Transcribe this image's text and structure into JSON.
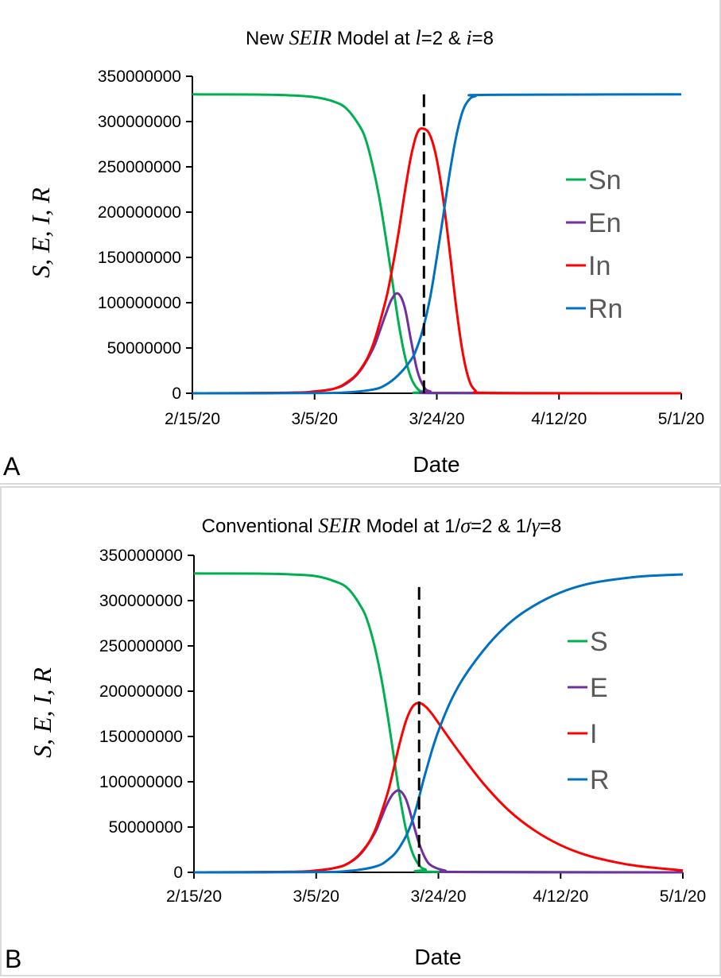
{
  "panels": [
    {
      "letter": "A",
      "title_parts": [
        "New ",
        "SEIR",
        " Model at ",
        "l",
        "=2 & ",
        "i",
        "=8"
      ],
      "ylabel": "S, E, I, R",
      "xlabel": "Date",
      "legend_position": "right-middle",
      "chart_data": {
        "type": "line",
        "title": "New SEIR Model at l=2 & i=8",
        "xlabel": "Date",
        "ylabel": "S, E, I, R",
        "x_ticks": [
          "2/15/20",
          "3/5/20",
          "3/24/20",
          "4/12/20",
          "5/1/20"
        ],
        "x_tick_days": [
          0,
          19,
          38,
          57,
          76
        ],
        "xlim": [
          "2/15/20",
          "5/1/20"
        ],
        "ylim": [
          0,
          350000000
        ],
        "y_ticks": [
          "0",
          "50000000",
          "100000000",
          "150000000",
          "200000000",
          "250000000",
          "300000000",
          "350000000"
        ],
        "grid": false,
        "vline": {
          "date": "3/22/20",
          "ymax": 330000000,
          "style": "dashed"
        },
        "series": [
          {
            "name": "Sn",
            "color": "#00b050",
            "x": [
              "2/15/20",
              "2/25/20",
              "3/1/20",
              "3/5/20",
              "3/8/20",
              "3/10/20",
              "3/12/20",
              "3/13/20",
              "3/14/20",
              "3/15/20",
              "3/16/20",
              "3/17/20",
              "3/18/20",
              "3/19/20",
              "3/20/20",
              "3/21/20",
              "3/22/20",
              "3/24/20",
              "5/1/20"
            ],
            "values": [
              330000000,
              329800000,
              329000000,
              327000000,
              322000000,
              314000000,
              295000000,
              279000000,
              252000000,
              218000000,
              175000000,
              128000000,
              80000000,
              42000000,
              17000000,
              5000000,
              1500000,
              200000,
              0
            ]
          },
          {
            "name": "En",
            "color": "#7030a0",
            "x": [
              "2/15/20",
              "3/1/20",
              "3/5/20",
              "3/8/20",
              "3/10/20",
              "3/12/20",
              "3/14/20",
              "3/15/20",
              "3/16/20",
              "3/17/20",
              "3/18/20",
              "3/19/20",
              "3/20/20",
              "3/21/20",
              "3/22/20",
              "3/23/20",
              "3/25/20",
              "5/1/20"
            ],
            "values": [
              0,
              500000,
              2000000,
              5000000,
              11000000,
              24000000,
              48000000,
              66000000,
              86000000,
              104000000,
              110000000,
              95000000,
              58000000,
              24000000,
              7000000,
              2000000,
              300000,
              0
            ]
          },
          {
            "name": "In",
            "color": "#ff0000",
            "x": [
              "2/15/20",
              "3/1/20",
              "3/5/20",
              "3/8/20",
              "3/10/20",
              "3/12/20",
              "3/14/20",
              "3/16/20",
              "3/17/20",
              "3/18/20",
              "3/19/20",
              "3/20/20",
              "3/21/20",
              "3/22/20",
              "3/23/20",
              "3/24/20",
              "3/25/20",
              "3/26/20",
              "3/27/20",
              "3/28/20",
              "3/29/20",
              "3/30/20",
              "3/31/20",
              "4/12/20",
              "5/1/20"
            ],
            "values": [
              0,
              500000,
              2000000,
              5000000,
              12000000,
              25000000,
              52000000,
              101000000,
              135000000,
              175000000,
              221000000,
              262000000,
              288000000,
              292000000,
              284000000,
              258000000,
              214000000,
              157000000,
              96000000,
              46000000,
              15000000,
              3000000,
              500000,
              0,
              0
            ]
          },
          {
            "name": "Rn",
            "color": "#0070c0",
            "x": [
              "2/15/20",
              "3/5/20",
              "3/10/20",
              "3/14/20",
              "3/16/20",
              "3/18/20",
              "3/20/20",
              "3/21/20",
              "3/22/20",
              "3/23/20",
              "3/24/20",
              "3/25/20",
              "3/26/20",
              "3/27/20",
              "3/28/20",
              "3/29/20",
              "3/30/20",
              "4/1/20",
              "5/1/20"
            ],
            "values": [
              0,
              200000,
              1000000,
              4000000,
              9000000,
              20000000,
              37000000,
              52000000,
              75000000,
              107000000,
              150000000,
              196000000,
              243000000,
              283000000,
              311000000,
              324000000,
              328000000,
              329500000,
              330000000
            ]
          }
        ]
      }
    },
    {
      "letter": "B",
      "title_parts": [
        "Conventional ",
        "SEIR",
        " Model at 1/",
        "σ",
        "=2 & 1/",
        "γ",
        "=8"
      ],
      "ylabel": "S, E, I, R",
      "xlabel": "Date",
      "legend_position": "right-middle",
      "chart_data": {
        "type": "line",
        "title": "Conventional SEIR Model at 1/σ=2 & 1/γ=8",
        "xlabel": "Date",
        "ylabel": "S, E, I, R",
        "x_ticks": [
          "2/15/20",
          "3/5/20",
          "3/24/20",
          "4/12/20",
          "5/1/20"
        ],
        "x_tick_days": [
          0,
          19,
          38,
          57,
          76
        ],
        "xlim": [
          "2/15/20",
          "5/1/20"
        ],
        "ylim": [
          0,
          350000000
        ],
        "y_ticks": [
          "0",
          "50000000",
          "100000000",
          "150000000",
          "200000000",
          "250000000",
          "300000000",
          "350000000"
        ],
        "grid": false,
        "vline": {
          "date": "3/21/20",
          "ymax": 315000000,
          "style": "dashed"
        },
        "series": [
          {
            "name": "S",
            "color": "#00b050",
            "x": [
              "2/15/20",
              "2/25/20",
              "3/1/20",
              "3/5/20",
              "3/8/20",
              "3/10/20",
              "3/12/20",
              "3/13/20",
              "3/14/20",
              "3/15/20",
              "3/16/20",
              "3/17/20",
              "3/18/20",
              "3/19/20",
              "3/20/20",
              "3/21/20",
              "3/22/20",
              "3/24/20",
              "5/1/20"
            ],
            "values": [
              330000000,
              329800000,
              329000000,
              327000000,
              321000000,
              313000000,
              293000000,
              277000000,
              252000000,
              219000000,
              178000000,
              131000000,
              84000000,
              46000000,
              21000000,
              8000000,
              3000000,
              500000,
              0
            ]
          },
          {
            "name": "E",
            "color": "#7030a0",
            "x": [
              "2/15/20",
              "3/1/20",
              "3/5/20",
              "3/8/20",
              "3/10/20",
              "3/12/20",
              "3/14/20",
              "3/15/20",
              "3/16/20",
              "3/17/20",
              "3/18/20",
              "3/19/20",
              "3/20/20",
              "3/21/20",
              "3/22/20",
              "3/23/20",
              "3/25/20",
              "3/28/20",
              "5/1/20"
            ],
            "values": [
              0,
              500000,
              2000000,
              5000000,
              10000000,
              21000000,
              42000000,
              58000000,
              75000000,
              87000000,
              90000000,
              80000000,
              56000000,
              32000000,
              15000000,
              7000000,
              2000000,
              300000,
              0
            ]
          },
          {
            "name": "I",
            "color": "#ff0000",
            "x": [
              "2/15/20",
              "3/1/20",
              "3/5/20",
              "3/8/20",
              "3/10/20",
              "3/12/20",
              "3/14/20",
              "3/16/20",
              "3/17/20",
              "3/18/20",
              "3/19/20",
              "3/20/20",
              "3/21/20",
              "3/22/20",
              "3/23/20",
              "3/24/20",
              "3/27/20",
              "3/31/20",
              "4/4/20",
              "4/8/20",
              "4/12/20",
              "4/16/20",
              "4/20/20",
              "4/24/20",
              "5/1/20"
            ],
            "values": [
              0,
              500000,
              2000000,
              5000000,
              10000000,
              22000000,
              44000000,
              85000000,
              113000000,
              143000000,
              168000000,
              183000000,
              187000000,
              183000000,
              175000000,
              165000000,
              135000000,
              98000000,
              68000000,
              46000000,
              30000000,
              19000000,
              12000000,
              7000000,
              2000000
            ]
          },
          {
            "name": "R",
            "color": "#0070c0",
            "x": [
              "2/15/20",
              "3/5/20",
              "3/10/20",
              "3/14/20",
              "3/16/20",
              "3/18/20",
              "3/20/20",
              "3/22/20",
              "3/24/20",
              "3/27/20",
              "3/31/20",
              "4/4/20",
              "4/8/20",
              "4/12/20",
              "4/16/20",
              "4/20/20",
              "4/25/20",
              "5/1/20"
            ],
            "values": [
              0,
              300000,
              1500000,
              6000000,
              13000000,
              28000000,
              58000000,
              110000000,
              156000000,
              204000000,
              245000000,
              275000000,
              295000000,
              309000000,
              318000000,
              323000000,
              327000000,
              329000000
            ]
          }
        ]
      }
    }
  ]
}
